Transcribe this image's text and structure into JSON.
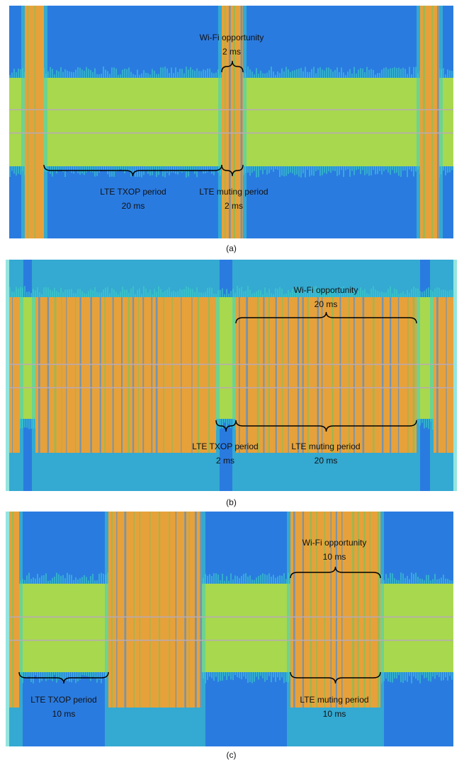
{
  "panels": [
    {
      "caption": "(a)",
      "annotations": [
        {
          "text": [
            "Wi-Fi opportunity",
            "2 ms"
          ]
        },
        {
          "text": [
            "LTE TXOP period",
            "20 ms"
          ]
        },
        {
          "text": [
            "LTE muting period",
            "2 ms"
          ]
        }
      ]
    },
    {
      "caption": "(b)",
      "annotations": [
        {
          "text": [
            "Wi-Fi opportunity",
            "20 ms"
          ]
        },
        {
          "text": [
            "LTE TXOP period",
            "2 ms"
          ]
        },
        {
          "text": [
            "LTE muting period",
            "20 ms"
          ]
        }
      ]
    },
    {
      "caption": "(c)",
      "annotations": [
        {
          "text": [
            "Wi-Fi opportunity",
            "10 ms"
          ]
        },
        {
          "text": [
            "LTE TXOP period",
            "10 ms"
          ]
        },
        {
          "text": [
            "LTE muting period",
            "10 ms"
          ]
        }
      ]
    }
  ]
}
